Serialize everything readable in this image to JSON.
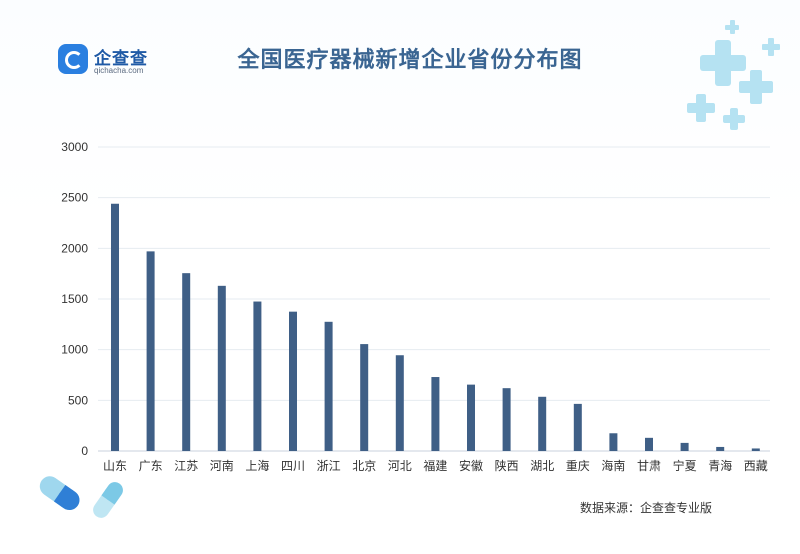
{
  "header": {
    "logo_name": "企查查",
    "logo_sub": "qichacha.com",
    "logo_icon": "qichacha-logo-icon"
  },
  "footer": {
    "source": "数据来源：企查查专业版"
  },
  "colors": {
    "bar": "#3f5f86",
    "title": "#3a6592",
    "grid": "#e6ebf1",
    "deco": "#8fd6ea"
  },
  "chart_data": {
    "type": "bar",
    "title": "全国医疗器械新增企业省份分布图",
    "xlabel": "",
    "ylabel": "",
    "categories": [
      "山东",
      "广东",
      "江苏",
      "河南",
      "上海",
      "四川",
      "浙江",
      "北京",
      "河北",
      "福建",
      "安徽",
      "陕西",
      "湖北",
      "重庆",
      "海南",
      "甘肃",
      "宁夏",
      "青海",
      "西藏"
    ],
    "values": [
      2440,
      1970,
      1755,
      1630,
      1475,
      1375,
      1275,
      1055,
      945,
      730,
      655,
      620,
      535,
      465,
      175,
      130,
      80,
      40,
      25
    ],
    "ylim": [
      0,
      3000
    ],
    "yticks": [
      "0",
      "500",
      "1000",
      "1500",
      "2000",
      "2500",
      "3000"
    ],
    "grid": true,
    "legend": "none"
  }
}
